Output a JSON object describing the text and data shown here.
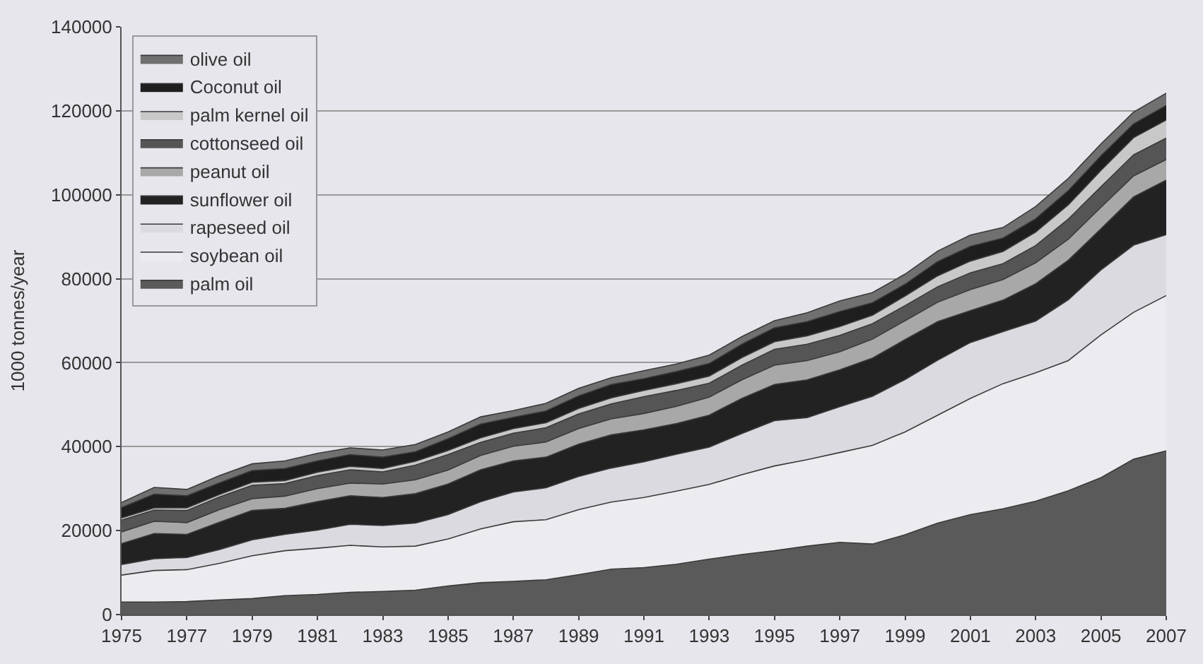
{
  "chart_data": {
    "type": "area",
    "stacked": true,
    "ylabel": "1000 tonnes/year",
    "x": [
      1975,
      1976,
      1977,
      1978,
      1979,
      1980,
      1981,
      1982,
      1983,
      1984,
      1985,
      1986,
      1987,
      1988,
      1989,
      1990,
      1991,
      1992,
      1993,
      1994,
      1995,
      1996,
      1997,
      1998,
      1999,
      2000,
      2001,
      2002,
      2003,
      2004,
      2005,
      2006,
      2007
    ],
    "xlim": [
      1975,
      2007
    ],
    "xticks": [
      1975,
      1977,
      1979,
      1981,
      1983,
      1985,
      1987,
      1989,
      1991,
      1993,
      1995,
      1997,
      1999,
      2001,
      2003,
      2005,
      2007
    ],
    "ylim": [
      0,
      140000
    ],
    "yticks": [
      0,
      20000,
      40000,
      60000,
      80000,
      100000,
      120000,
      140000
    ],
    "grid": "y",
    "legend": "top left",
    "series": [
      {
        "name": "palm oil",
        "color": "#5a5a5a",
        "values": [
          3000,
          3000,
          3100,
          3500,
          3800,
          4500,
          4800,
          5300,
          5500,
          5800,
          6800,
          7600,
          7900,
          8300,
          9500,
          10800,
          11200,
          12000,
          13200,
          14300,
          15200,
          16300,
          17200,
          16800,
          19000,
          21800,
          23800,
          25200,
          27000,
          29500,
          32600,
          37000,
          39000
        ]
      },
      {
        "name": "soybean oil",
        "color": "#ececf0",
        "values": [
          6400,
          7500,
          7600,
          8700,
          10200,
          10700,
          11000,
          11200,
          10600,
          10500,
          11200,
          12800,
          14200,
          14300,
          15500,
          16000,
          16700,
          17400,
          17800,
          19000,
          20200,
          20600,
          21400,
          23500,
          24500,
          25700,
          27700,
          29800,
          30600,
          31000,
          34000,
          35000,
          37000
        ]
      },
      {
        "name": "rapeseed oil",
        "color": "#dadae0",
        "values": [
          2500,
          2800,
          2900,
          3300,
          3800,
          3900,
          4300,
          5000,
          5100,
          5500,
          5800,
          6500,
          7100,
          7600,
          7900,
          8100,
          8500,
          8800,
          8900,
          9800,
          10800,
          10000,
          10900,
          11700,
          12500,
          13100,
          13300,
          12400,
          12300,
          14500,
          15500,
          16000,
          14500
        ]
      },
      {
        "name": "sunflower oil",
        "color": "#222222",
        "values": [
          5000,
          6000,
          5500,
          6500,
          7000,
          6200,
          6800,
          6800,
          6700,
          7000,
          7300,
          7600,
          7400,
          7300,
          7700,
          7900,
          7600,
          7300,
          7600,
          8400,
          8600,
          9000,
          8800,
          9100,
          9500,
          9200,
          7600,
          7500,
          8900,
          9400,
          9800,
          11500,
          13000
        ]
      },
      {
        "name": "peanut oil",
        "color": "#a8a8a8",
        "values": [
          2800,
          2900,
          2800,
          3000,
          2800,
          2900,
          3100,
          3000,
          3200,
          3300,
          3300,
          3400,
          3500,
          3600,
          3700,
          3800,
          3900,
          4100,
          4300,
          4400,
          4600,
          4600,
          4300,
          4500,
          4500,
          4600,
          5000,
          4900,
          5000,
          5000,
          5100,
          5000,
          4900
        ]
      },
      {
        "name": "cottonseed oil",
        "color": "#555555",
        "values": [
          2800,
          2700,
          2900,
          3000,
          3200,
          3000,
          3100,
          3200,
          2900,
          3500,
          3700,
          3100,
          3100,
          3400,
          3500,
          3600,
          4000,
          3800,
          3300,
          3500,
          3800,
          3900,
          3900,
          3700,
          3600,
          3700,
          4000,
          3800,
          4100,
          4800,
          4900,
          5000,
          5100
        ]
      },
      {
        "name": "palm kernel oil",
        "color": "#c8c8c8",
        "values": [
          500,
          500,
          600,
          600,
          700,
          700,
          800,
          800,
          800,
          900,
          1000,
          1100,
          1100,
          1200,
          1300,
          1400,
          1500,
          1600,
          1700,
          1800,
          1800,
          2000,
          2100,
          2000,
          2300,
          2600,
          2800,
          2900,
          3200,
          3400,
          3900,
          4100,
          4300
        ]
      },
      {
        "name": "Coconut oil",
        "color": "#1e1e1e",
        "values": [
          2500,
          3300,
          2900,
          2800,
          2800,
          2900,
          2700,
          2800,
          2700,
          2300,
          2800,
          3300,
          2700,
          2800,
          3000,
          3200,
          2800,
          2900,
          3000,
          3200,
          3300,
          3400,
          3600,
          3000,
          2800,
          3400,
          3500,
          3200,
          3200,
          3400,
          3500,
          3300,
          3500
        ]
      },
      {
        "name": "olive oil",
        "color": "#707070",
        "values": [
          1200,
          1600,
          1500,
          1700,
          1600,
          1800,
          1800,
          1600,
          1700,
          1700,
          1600,
          1700,
          1600,
          1800,
          1800,
          1600,
          1900,
          1800,
          2000,
          1800,
          1700,
          2100,
          2500,
          2400,
          2400,
          2500,
          2700,
          2500,
          2900,
          2900,
          2800,
          2800,
          2900
        ]
      }
    ]
  }
}
